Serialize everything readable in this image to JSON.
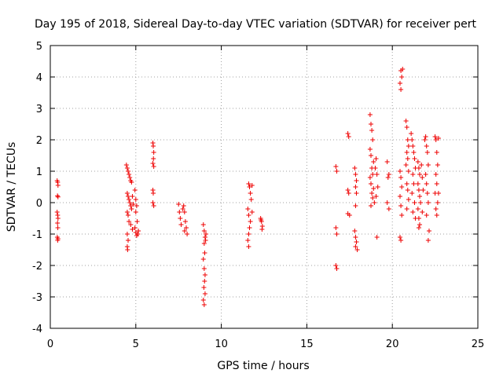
{
  "chart_data": {
    "type": "scatter",
    "title": "Day 195 of 2018, Sidereal Day-to-day VTEC variation (SDTVAR) for receiver pert",
    "xlabel": "GPS time / hours",
    "ylabel": "SDTVAR / TECUs",
    "xlim": [
      0,
      25
    ],
    "ylim": [
      -4,
      5
    ],
    "xticks": [
      0,
      5,
      10,
      15,
      20,
      25
    ],
    "yticks": [
      -4,
      -3,
      -2,
      -1,
      0,
      1,
      2,
      3,
      4,
      5
    ],
    "grid": true,
    "marker": "+",
    "color": "#ee0000",
    "series": [
      {
        "name": "SDTVAR",
        "points": [
          [
            0.4,
            0.7
          ],
          [
            0.43,
            0.65
          ],
          [
            0.45,
            0.55
          ],
          [
            0.42,
            0.22
          ],
          [
            0.45,
            0.18
          ],
          [
            0.4,
            -0.3
          ],
          [
            0.43,
            -0.4
          ],
          [
            0.45,
            -0.5
          ],
          [
            0.42,
            -0.65
          ],
          [
            0.44,
            -0.8
          ],
          [
            0.41,
            -1.1
          ],
          [
            0.45,
            -1.15
          ],
          [
            0.43,
            -1.2
          ],
          [
            4.45,
            1.2
          ],
          [
            4.5,
            1.1
          ],
          [
            4.55,
            1.0
          ],
          [
            4.6,
            0.9
          ],
          [
            4.65,
            0.8
          ],
          [
            4.7,
            0.7
          ],
          [
            4.75,
            0.65
          ],
          [
            4.5,
            0.3
          ],
          [
            4.55,
            0.2
          ],
          [
            4.6,
            0.1
          ],
          [
            4.65,
            0.0
          ],
          [
            4.7,
            -0.1
          ],
          [
            4.75,
            -0.2
          ],
          [
            4.8,
            0.2
          ],
          [
            4.85,
            -0.05
          ],
          [
            4.5,
            -0.3
          ],
          [
            4.55,
            -0.4
          ],
          [
            4.6,
            -0.6
          ],
          [
            4.7,
            -0.7
          ],
          [
            4.8,
            -0.85
          ],
          [
            4.5,
            -1.0
          ],
          [
            4.55,
            -1.2
          ],
          [
            4.5,
            -1.4
          ],
          [
            4.52,
            -1.5
          ],
          [
            4.95,
            0.4
          ],
          [
            5.0,
            0.1
          ],
          [
            5.05,
            -0.1
          ],
          [
            5.0,
            -0.3
          ],
          [
            5.08,
            -0.6
          ],
          [
            4.95,
            -0.8
          ],
          [
            5.0,
            -0.95
          ],
          [
            5.05,
            -1.05
          ],
          [
            5.12,
            -1.0
          ],
          [
            5.15,
            -0.9
          ],
          [
            6.0,
            1.9
          ],
          [
            6.02,
            1.8
          ],
          [
            6.05,
            1.6
          ],
          [
            6.03,
            1.4
          ],
          [
            6.0,
            1.25
          ],
          [
            6.05,
            1.15
          ],
          [
            6.0,
            0.4
          ],
          [
            6.02,
            0.3
          ],
          [
            6.0,
            0.0
          ],
          [
            6.05,
            -0.1
          ],
          [
            7.5,
            -0.05
          ],
          [
            7.55,
            -0.3
          ],
          [
            7.6,
            -0.5
          ],
          [
            7.65,
            -0.7
          ],
          [
            7.8,
            -0.1
          ],
          [
            7.85,
            -0.3
          ],
          [
            7.9,
            -0.6
          ],
          [
            7.95,
            -0.8
          ],
          [
            8.0,
            -1.0
          ],
          [
            7.75,
            -0.2
          ],
          [
            7.85,
            -0.9
          ],
          [
            8.95,
            -0.7
          ],
          [
            9.0,
            -0.9
          ],
          [
            9.05,
            -1.1
          ],
          [
            9.0,
            -1.3
          ],
          [
            9.03,
            -1.6
          ],
          [
            8.95,
            -1.8
          ],
          [
            9.0,
            -2.1
          ],
          [
            9.05,
            -2.3
          ],
          [
            9.02,
            -2.5
          ],
          [
            8.98,
            -2.7
          ],
          [
            9.05,
            -2.9
          ],
          [
            8.95,
            -3.1
          ],
          [
            9.0,
            -3.25
          ],
          [
            9.08,
            -1.2
          ],
          [
            9.1,
            -1.0
          ],
          [
            11.6,
            0.6
          ],
          [
            11.65,
            0.5
          ],
          [
            11.7,
            0.3
          ],
          [
            11.75,
            0.1
          ],
          [
            11.55,
            -0.2
          ],
          [
            11.6,
            -0.4
          ],
          [
            11.7,
            -0.6
          ],
          [
            11.65,
            -0.8
          ],
          [
            11.6,
            -1.0
          ],
          [
            11.55,
            -1.2
          ],
          [
            11.6,
            -1.4
          ],
          [
            11.8,
            0.55
          ],
          [
            11.8,
            -0.3
          ],
          [
            12.3,
            -0.5
          ],
          [
            12.35,
            -0.6
          ],
          [
            12.4,
            -0.75
          ],
          [
            12.38,
            -0.85
          ],
          [
            12.32,
            -0.55
          ],
          [
            16.7,
            1.15
          ],
          [
            16.75,
            1.0
          ],
          [
            16.7,
            -0.8
          ],
          [
            16.75,
            -1.0
          ],
          [
            16.7,
            -2.0
          ],
          [
            16.75,
            -2.1
          ],
          [
            17.4,
            2.2
          ],
          [
            17.45,
            2.1
          ],
          [
            17.4,
            0.4
          ],
          [
            17.45,
            0.3
          ],
          [
            17.4,
            -0.35
          ],
          [
            17.5,
            -0.4
          ],
          [
            17.8,
            1.1
          ],
          [
            17.85,
            0.9
          ],
          [
            17.9,
            0.7
          ],
          [
            17.85,
            0.5
          ],
          [
            17.9,
            0.3
          ],
          [
            17.85,
            -0.1
          ],
          [
            17.8,
            -0.9
          ],
          [
            17.85,
            -1.1
          ],
          [
            17.9,
            -1.25
          ],
          [
            17.85,
            -1.4
          ],
          [
            17.95,
            -1.5
          ],
          [
            18.7,
            2.8
          ],
          [
            18.75,
            2.5
          ],
          [
            18.8,
            2.3
          ],
          [
            18.85,
            2.0
          ],
          [
            18.7,
            1.7
          ],
          [
            18.75,
            1.5
          ],
          [
            18.9,
            1.3
          ],
          [
            18.8,
            1.1
          ],
          [
            18.85,
            0.9
          ],
          [
            18.7,
            0.8
          ],
          [
            18.75,
            0.6
          ],
          [
            18.9,
            0.45
          ],
          [
            18.8,
            0.3
          ],
          [
            18.85,
            0.15
          ],
          [
            18.95,
            0.0
          ],
          [
            18.75,
            -0.1
          ],
          [
            19.0,
            1.1
          ],
          [
            19.05,
            1.4
          ],
          [
            19.1,
            0.9
          ],
          [
            19.15,
            0.5
          ],
          [
            19.05,
            0.2
          ],
          [
            19.1,
            -1.1
          ],
          [
            19.7,
            1.3
          ],
          [
            19.8,
            0.9
          ],
          [
            19.75,
            0.8
          ],
          [
            19.7,
            0.0
          ],
          [
            19.8,
            -0.2
          ],
          [
            20.5,
            4.2
          ],
          [
            20.55,
            4.0
          ],
          [
            20.45,
            3.8
          ],
          [
            20.5,
            3.6
          ],
          [
            20.6,
            4.25
          ],
          [
            20.45,
            1.0
          ],
          [
            20.5,
            0.8
          ],
          [
            20.55,
            0.5
          ],
          [
            20.45,
            0.2
          ],
          [
            20.5,
            -0.1
          ],
          [
            20.55,
            -0.4
          ],
          [
            20.45,
            -1.1
          ],
          [
            20.5,
            -1.2
          ],
          [
            20.8,
            2.6
          ],
          [
            20.85,
            2.4
          ],
          [
            20.9,
            2.0
          ],
          [
            20.95,
            1.8
          ],
          [
            20.85,
            1.6
          ],
          [
            20.9,
            1.4
          ],
          [
            20.8,
            1.2
          ],
          [
            20.95,
            1.0
          ],
          [
            20.85,
            0.6
          ],
          [
            20.9,
            0.4
          ],
          [
            20.95,
            0.1
          ],
          [
            20.85,
            -0.2
          ],
          [
            21.1,
            2.2
          ],
          [
            21.15,
            2.0
          ],
          [
            21.2,
            1.8
          ],
          [
            21.25,
            1.6
          ],
          [
            21.3,
            1.4
          ],
          [
            21.35,
            1.1
          ],
          [
            21.2,
            0.9
          ],
          [
            21.25,
            0.6
          ],
          [
            21.15,
            0.3
          ],
          [
            21.3,
            0.0
          ],
          [
            21.2,
            -0.3
          ],
          [
            21.35,
            -0.5
          ],
          [
            21.5,
            1.3
          ],
          [
            21.55,
            1.1
          ],
          [
            21.6,
            0.9
          ],
          [
            21.5,
            0.6
          ],
          [
            21.55,
            0.4
          ],
          [
            21.6,
            0.2
          ],
          [
            21.65,
            0.0
          ],
          [
            21.5,
            -0.2
          ],
          [
            21.55,
            -0.5
          ],
          [
            21.6,
            -0.7
          ],
          [
            21.55,
            -0.8
          ],
          [
            21.7,
            1.2
          ],
          [
            21.75,
            0.8
          ],
          [
            21.8,
            0.4
          ],
          [
            21.75,
            -0.3
          ],
          [
            21.9,
            2.0
          ],
          [
            21.95,
            2.1
          ],
          [
            22.0,
            1.8
          ],
          [
            22.05,
            1.6
          ],
          [
            22.1,
            1.2
          ],
          [
            21.95,
            0.9
          ],
          [
            22.0,
            0.6
          ],
          [
            22.05,
            0.3
          ],
          [
            22.1,
            0.0
          ],
          [
            22.0,
            -0.4
          ],
          [
            22.15,
            -0.9
          ],
          [
            22.1,
            -1.2
          ],
          [
            22.5,
            2.1
          ],
          [
            22.55,
            2.0
          ],
          [
            22.6,
            1.6
          ],
          [
            22.65,
            1.2
          ],
          [
            22.55,
            0.9
          ],
          [
            22.6,
            0.6
          ],
          [
            22.5,
            0.3
          ],
          [
            22.65,
            0.0
          ],
          [
            22.55,
            -0.2
          ],
          [
            22.6,
            -0.4
          ],
          [
            22.7,
            2.05
          ],
          [
            22.7,
            0.3
          ]
        ]
      }
    ]
  }
}
